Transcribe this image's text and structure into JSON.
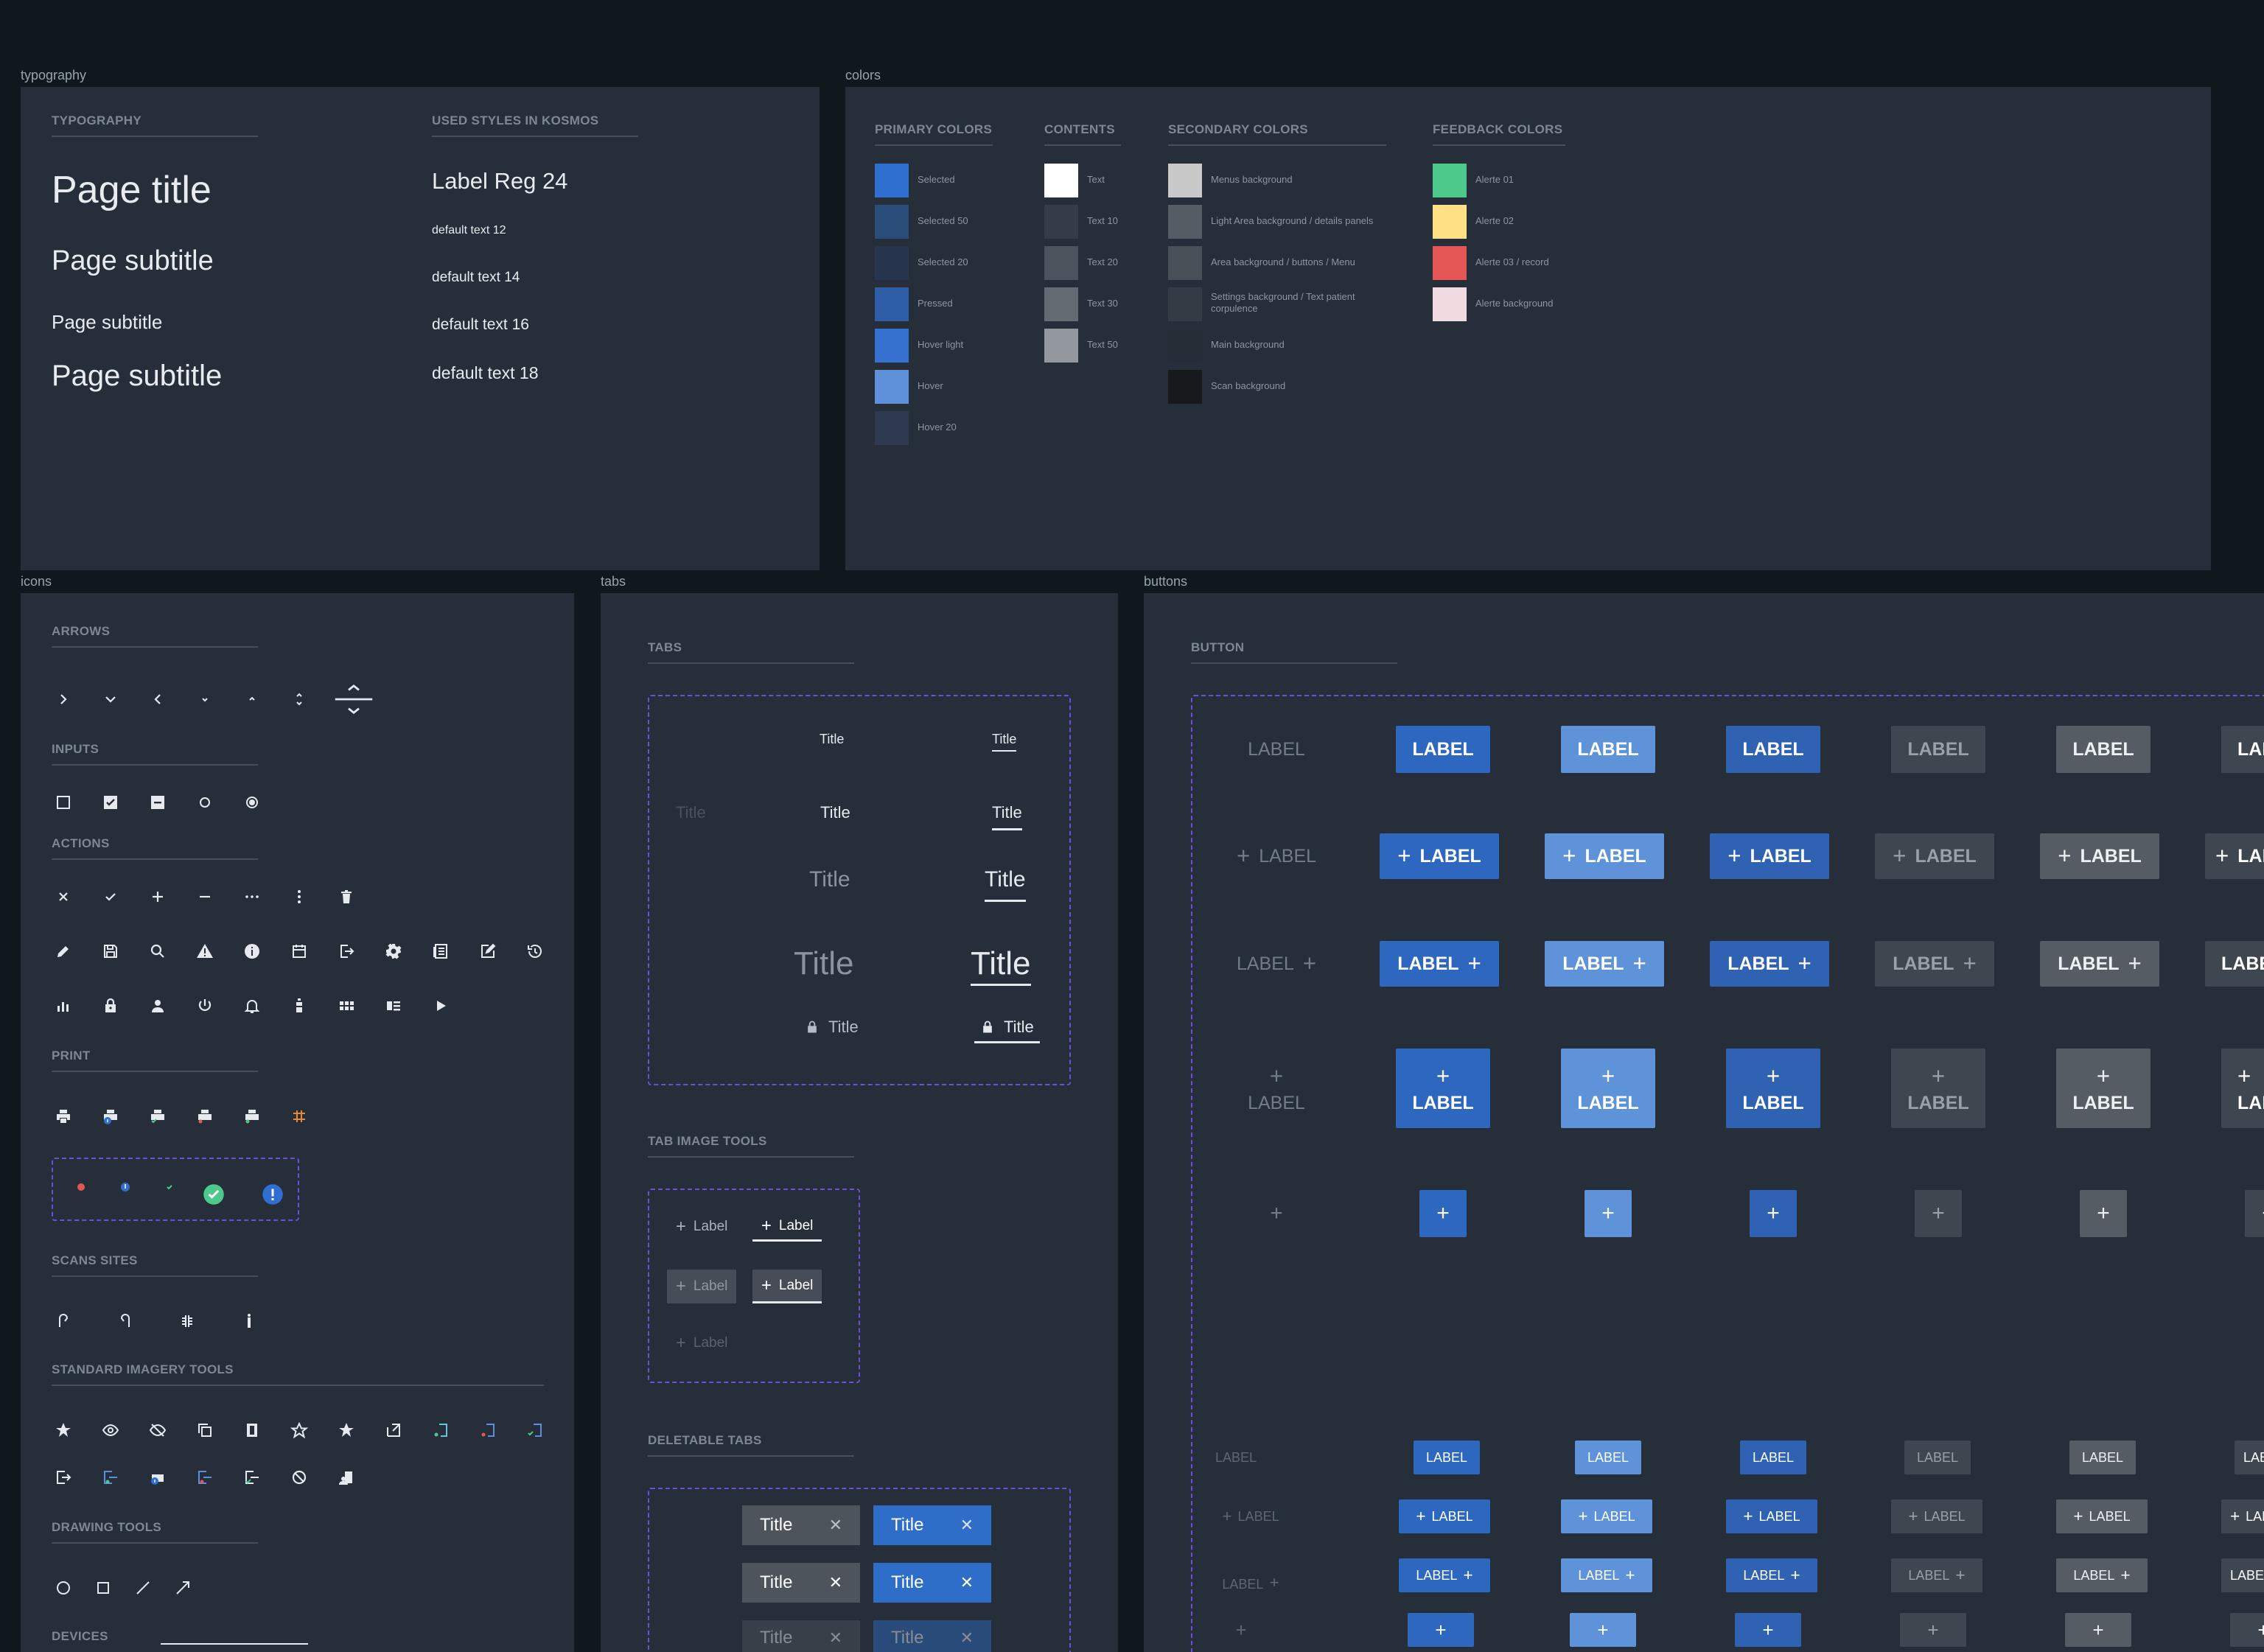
{
  "frames": {
    "typography": "typography",
    "colors": "colors",
    "icons": "icons",
    "tabs": "tabs",
    "buttons": "buttons"
  },
  "typography": {
    "heading": "TYPOGRAPHY",
    "left": [
      "Page title",
      "Page subtitle",
      "Page subtitle",
      "Page subtitle"
    ],
    "used_heading": "USED STYLES IN KOSMOS",
    "right": [
      "Label Reg 24",
      "default text 12",
      "default text 14",
      "default text 16",
      "default text 18"
    ]
  },
  "colors": {
    "groups": [
      {
        "heading": "PRIMARY COLORS",
        "items": [
          {
            "label": "Selected",
            "color": "#2f6fd0"
          },
          {
            "label": "Selected 50",
            "color": "#2a4d7a"
          },
          {
            "label": "Selected 20",
            "color": "#26354d"
          },
          {
            "label": "Pressed",
            "color": "#2e5ea8"
          },
          {
            "label": "Hover light",
            "color": "#3572d0"
          },
          {
            "label": "Hover",
            "color": "#5f91db"
          },
          {
            "label": "Hover 20",
            "color": "#2e3a50"
          }
        ]
      },
      {
        "heading": "CONTENTS",
        "items": [
          {
            "label": "Text",
            "color": "#ffffff"
          },
          {
            "label": "Text 10",
            "color": "#343d47"
          },
          {
            "label": "Text 20",
            "color": "#4b535c"
          },
          {
            "label": "Text 30",
            "color": "#646b73"
          },
          {
            "label": "Text 50",
            "color": "#92989e"
          }
        ]
      },
      {
        "heading": "SECONDARY COLORS",
        "items": [
          {
            "label": "Menus background",
            "color": "#c8c8c8"
          },
          {
            "label": "Light Area background / details panels",
            "color": "#555c64"
          },
          {
            "label": "Area background / buttons / Menu",
            "color": "#484f57"
          },
          {
            "label": "Settings background / Text patient corpulence",
            "color": "#343b45"
          },
          {
            "label": "Main background",
            "color": "#262d36"
          },
          {
            "label": "Scan background",
            "color": "#17191c"
          }
        ]
      },
      {
        "heading": "FEEDBACK COLORS",
        "items": [
          {
            "label": "Alerte 01",
            "color": "#4ec98c"
          },
          {
            "label": "Alerte 02",
            "color": "#ffe084"
          },
          {
            "label": "Alerte 03 / record",
            "color": "#e45757"
          },
          {
            "label": "Alerte background",
            "color": "#f0dce0"
          }
        ]
      }
    ]
  },
  "icons": {
    "sections": [
      "ARROWS",
      "INPUTS",
      "ACTIONS",
      "PRINT",
      "SCANS SITES",
      "STANDARD IMAGERY TOOLS",
      "DRAWING TOOLS",
      "DEVICES"
    ]
  },
  "tabs": {
    "heading": "TABS",
    "title": "Title",
    "image_tools_heading": "TAB IMAGE TOOLS",
    "label": "Label",
    "deletable_heading": "DELETABLE TABS",
    "close": "✕"
  },
  "buttons": {
    "heading": "BUTTON",
    "label": "LABEL",
    "plus": "+"
  }
}
